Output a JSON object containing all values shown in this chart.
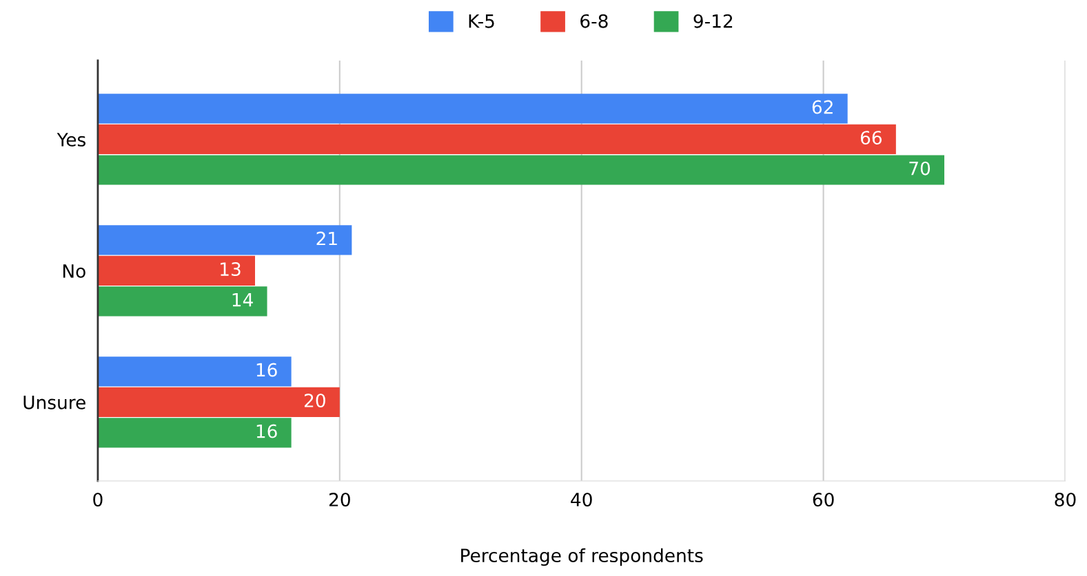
{
  "chart_data": {
    "type": "bar",
    "orientation": "horizontal",
    "xlabel": "Percentage of respondents",
    "categories": [
      "Yes",
      "No",
      "Unsure"
    ],
    "series": [
      {
        "name": "K-5",
        "color": "#4285f4",
        "values": [
          62,
          21,
          16
        ]
      },
      {
        "name": "6-8",
        "color": "#ea4335",
        "values": [
          66,
          13,
          20
        ]
      },
      {
        "name": "9-12",
        "color": "#34a853",
        "values": [
          70,
          14,
          16
        ]
      }
    ],
    "xlim": [
      0,
      80
    ],
    "xticks": [
      0,
      20,
      40,
      60,
      80
    ],
    "grid": "x",
    "legend": "top",
    "data_labels": true
  }
}
